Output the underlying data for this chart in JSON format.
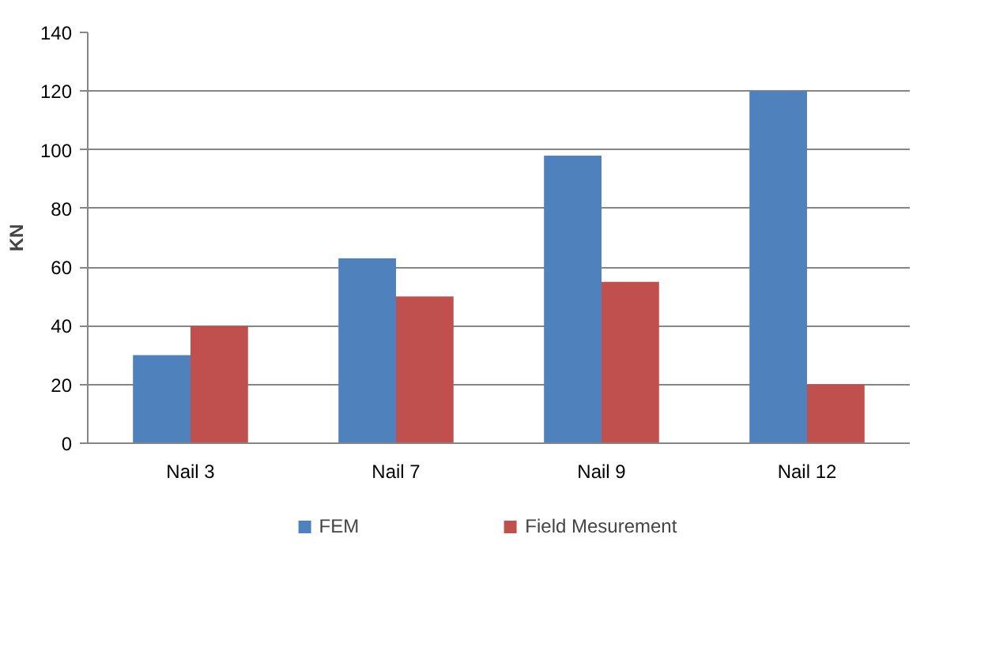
{
  "chart_data": {
    "type": "bar",
    "ylabel": "KN",
    "categories": [
      "Nail 3",
      "Nail 7",
      "Nail 9",
      "Nail 12"
    ],
    "series": [
      {
        "name": "FEM",
        "color": "#4f81bd",
        "values": [
          30,
          63,
          98,
          120
        ]
      },
      {
        "name": "Field Mesurement",
        "color": "#c0504d",
        "values": [
          40,
          50,
          55,
          20
        ]
      }
    ],
    "ylim": [
      0,
      140
    ],
    "yticks": [
      0,
      20,
      40,
      60,
      80,
      100,
      120,
      140
    ],
    "grid": "y",
    "legend": "bottom"
  }
}
